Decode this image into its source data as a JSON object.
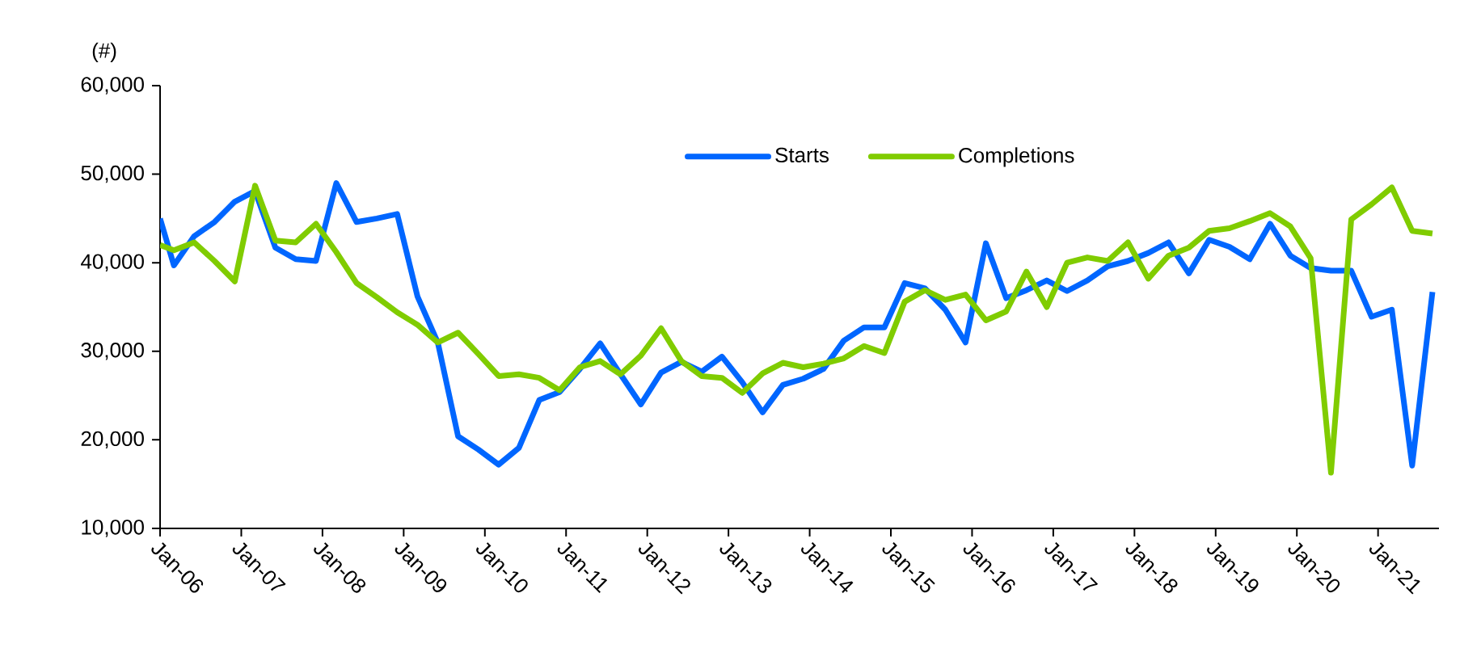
{
  "chart_data": {
    "type": "line",
    "ylabel": "(#)",
    "x": [
      "2006-01",
      "2006-03",
      "2006-06",
      "2006-09",
      "2006-12",
      "2007-03",
      "2007-06",
      "2007-09",
      "2007-12",
      "2008-03",
      "2008-06",
      "2008-09",
      "2008-12",
      "2009-03",
      "2009-06",
      "2009-09",
      "2009-12",
      "2010-03",
      "2010-06",
      "2010-09",
      "2010-12",
      "2011-03",
      "2011-06",
      "2011-09",
      "2011-12",
      "2012-03",
      "2012-06",
      "2012-09",
      "2012-12",
      "2013-03",
      "2013-06",
      "2013-09",
      "2013-12",
      "2014-03",
      "2014-06",
      "2014-09",
      "2014-12",
      "2015-03",
      "2015-06",
      "2015-09",
      "2015-12",
      "2016-03",
      "2016-06",
      "2016-09",
      "2016-12",
      "2017-03",
      "2017-06",
      "2017-09",
      "2017-12",
      "2018-03",
      "2018-06",
      "2018-09",
      "2018-12",
      "2019-03",
      "2019-06",
      "2019-09",
      "2019-12",
      "2020-03",
      "2020-06",
      "2020-09",
      "2020-12",
      "2021-03",
      "2021-06",
      "2021-09"
    ],
    "series": [
      {
        "name": "Starts",
        "color": "#0066ff",
        "values": [
          45000,
          39700,
          43000,
          44600,
          46900,
          48100,
          41700,
          40400,
          40200,
          49000,
          44600,
          45000,
          45500,
          36200,
          31000,
          20400,
          18900,
          17200,
          19100,
          24500,
          25400,
          28000,
          30900,
          27400,
          24000,
          27600,
          28800,
          27700,
          29400,
          26500,
          23100,
          26200,
          26900,
          28000,
          31200,
          32700,
          32700,
          37700,
          37100,
          34700,
          31000,
          42200,
          36000,
          36900,
          38000,
          36800,
          38000,
          39600,
          40200,
          41100,
          42300,
          38800,
          42600,
          41800,
          40400,
          44400,
          40800,
          39400,
          39100,
          39100,
          33900,
          34700,
          17100,
          36700
        ]
      },
      {
        "name": "Completions",
        "color": "#80cc00",
        "values": [
          42000,
          41400,
          42300,
          40200,
          37900,
          48700,
          42500,
          42300,
          44400,
          41200,
          37700,
          36100,
          34400,
          33000,
          31000,
          32100,
          29700,
          27200,
          27400,
          27000,
          25600,
          28200,
          28900,
          27400,
          29500,
          32600,
          28900,
          27200,
          27000,
          25300,
          27500,
          28700,
          28200,
          28600,
          29200,
          30600,
          29800,
          35600,
          36900,
          35800,
          36400,
          33500,
          34500,
          39000,
          35000,
          40000,
          40600,
          40200,
          42300,
          38200,
          40800,
          41700,
          43600,
          43900,
          44700,
          45600,
          44100,
          40500,
          16300,
          44900,
          46600,
          48500,
          43600,
          43300
        ]
      }
    ],
    "xlim": [
      "2006-01",
      "2021-10"
    ],
    "xticks": [
      {
        "value": "2006-01",
        "label": "Jan-06"
      },
      {
        "value": "2007-01",
        "label": "Jan-07"
      },
      {
        "value": "2008-01",
        "label": "Jan-08"
      },
      {
        "value": "2009-01",
        "label": "Jan-09"
      },
      {
        "value": "2010-01",
        "label": "Jan-10"
      },
      {
        "value": "2011-01",
        "label": "Jan-11"
      },
      {
        "value": "2012-01",
        "label": "Jan-12"
      },
      {
        "value": "2013-01",
        "label": "Jan-13"
      },
      {
        "value": "2014-01",
        "label": "Jan-14"
      },
      {
        "value": "2015-01",
        "label": "Jan-15"
      },
      {
        "value": "2016-01",
        "label": "Jan-16"
      },
      {
        "value": "2017-01",
        "label": "Jan-17"
      },
      {
        "value": "2018-01",
        "label": "Jan-18"
      },
      {
        "value": "2019-01",
        "label": "Jan-19"
      },
      {
        "value": "2020-01",
        "label": "Jan-20"
      },
      {
        "value": "2021-01",
        "label": "Jan-21"
      }
    ],
    "ylim": [
      10000,
      60000
    ],
    "yticks": [
      {
        "value": 10000,
        "label": "10,000"
      },
      {
        "value": 20000,
        "label": "20,000"
      },
      {
        "value": 30000,
        "label": "30,000"
      },
      {
        "value": 40000,
        "label": "40,000"
      },
      {
        "value": 50000,
        "label": "50,000"
      },
      {
        "value": 60000,
        "label": "60,000"
      }
    ],
    "legend": "top"
  }
}
